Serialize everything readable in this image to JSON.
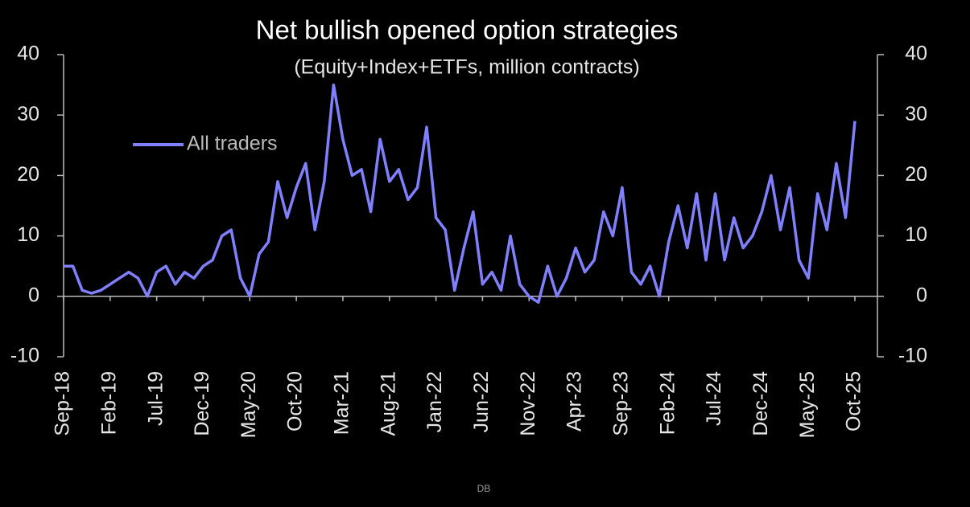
{
  "chart_data": {
    "type": "line",
    "title": "Net bullish opened option strategies",
    "subtitle": "(Equity+Index+ETFs, million contracts)",
    "source": "DB",
    "categories": [
      "Sep-18",
      null,
      null,
      null,
      null,
      "Feb-19",
      null,
      null,
      null,
      null,
      "Jul-19",
      null,
      null,
      null,
      null,
      "Dec-19",
      null,
      null,
      null,
      null,
      "May-20",
      null,
      null,
      null,
      null,
      "Oct-20",
      null,
      null,
      null,
      null,
      "Mar-21",
      null,
      null,
      null,
      null,
      "Aug-21",
      null,
      null,
      null,
      null,
      "Jan-22",
      null,
      null,
      null,
      null,
      "Jun-22",
      null,
      null,
      null,
      null,
      "Nov-22",
      null,
      null,
      null,
      null,
      "Apr-23",
      null,
      null,
      null,
      null,
      "Sep-23",
      null,
      null,
      null,
      null,
      "Feb-24",
      null,
      null,
      null,
      null,
      "Jul-24",
      null,
      null,
      null,
      null,
      "Dec-24",
      null,
      null,
      null,
      null,
      "May-25",
      null,
      null,
      null,
      null,
      "Oct-25"
    ],
    "series": [
      {
        "name": "All traders",
        "color": "#8080ff",
        "values": [
          5,
          5,
          1,
          0.5,
          1,
          2,
          3,
          4,
          3,
          0,
          4,
          5,
          2,
          4,
          3,
          5,
          6,
          10,
          11,
          3,
          0,
          7,
          9,
          19,
          13,
          18,
          22,
          11,
          19,
          35,
          26,
          20,
          21,
          14,
          26,
          19,
          21,
          16,
          18,
          28,
          13,
          11,
          1,
          8,
          14,
          2,
          4,
          1,
          10,
          2,
          0,
          -1,
          5,
          0,
          3,
          8,
          4,
          6,
          14,
          10,
          18,
          4,
          2,
          5,
          0,
          9,
          15,
          8,
          17,
          6,
          17,
          6,
          13,
          8,
          10,
          14,
          20,
          11,
          18,
          6,
          3,
          17,
          11,
          22,
          13,
          29
        ]
      }
    ],
    "ylim": [
      -10,
      40
    ],
    "yticks": [
      -10,
      0,
      10,
      20,
      30,
      40
    ],
    "y2lim": [
      -10,
      40
    ],
    "y2ticks": [
      -10,
      0,
      10,
      20,
      30,
      40
    ],
    "legend": "upper left"
  }
}
